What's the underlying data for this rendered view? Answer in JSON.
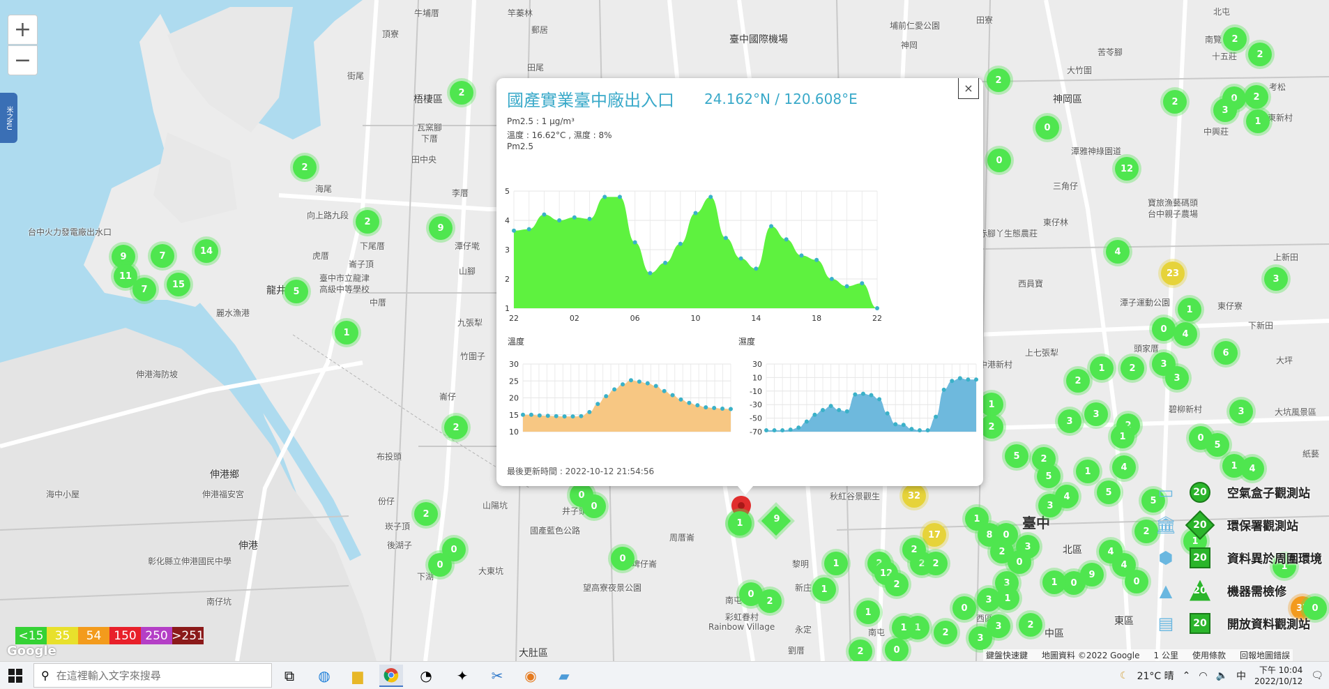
{
  "map": {
    "zoom_in": "+",
    "zoom_out": "−",
    "side_tab": "米之NU",
    "labels": [
      {
        "t": "牛埔厝",
        "x": 594,
        "y": 10
      },
      {
        "t": "竿蓁林",
        "x": 728,
        "y": 10
      },
      {
        "t": "郵居",
        "x": 762,
        "y": 34
      },
      {
        "t": "頂寮",
        "x": 548,
        "y": 40
      },
      {
        "t": "街尾",
        "x": 498,
        "y": 100
      },
      {
        "t": "田尾",
        "x": 756,
        "y": 88
      },
      {
        "t": "梧棲區",
        "x": 593,
        "y": 132,
        "c": "med"
      },
      {
        "t": "瓦窯腳",
        "x": 598,
        "y": 174
      },
      {
        "t": "下厝",
        "x": 604,
        "y": 190
      },
      {
        "t": "田中央",
        "x": 590,
        "y": 220
      },
      {
        "t": "海尾",
        "x": 452,
        "y": 262
      },
      {
        "t": "李厝",
        "x": 648,
        "y": 268
      },
      {
        "t": "台中火力發電廠出水口",
        "x": 40,
        "y": 324
      },
      {
        "t": "向上路九段",
        "x": 440,
        "y": 300
      },
      {
        "t": "下尾厝",
        "x": 516,
        "y": 344
      },
      {
        "t": "潭仔墘",
        "x": 652,
        "y": 344
      },
      {
        "t": "虎厝",
        "x": 448,
        "y": 358
      },
      {
        "t": "山腳",
        "x": 658,
        "y": 380
      },
      {
        "t": "崙子頂",
        "x": 500,
        "y": 370
      },
      {
        "t": "臺中市立龍津",
        "x": 458,
        "y": 390
      },
      {
        "t": "高級中等學校",
        "x": 458,
        "y": 406
      },
      {
        "t": "中厝",
        "x": 530,
        "y": 425
      },
      {
        "t": "龍井",
        "x": 382,
        "y": 406,
        "c": "med"
      },
      {
        "t": "麗水漁港",
        "x": 310,
        "y": 440
      },
      {
        "t": "九張犁",
        "x": 656,
        "y": 454
      },
      {
        "t": "竹圍子",
        "x": 660,
        "y": 502
      },
      {
        "t": "伸港海防坡",
        "x": 195,
        "y": 528
      },
      {
        "t": "崙仔",
        "x": 630,
        "y": 560
      },
      {
        "t": "伸港鄉",
        "x": 301,
        "y": 670,
        "c": "med"
      },
      {
        "t": "伸港福安宮",
        "x": 290,
        "y": 700
      },
      {
        "t": "布投頭",
        "x": 540,
        "y": 646
      },
      {
        "t": "份仔",
        "x": 542,
        "y": 710
      },
      {
        "t": "崁子頂",
        "x": 552,
        "y": 746
      },
      {
        "t": "後湖子",
        "x": 555,
        "y": 773
      },
      {
        "t": "海中小屋",
        "x": 66,
        "y": 700
      },
      {
        "t": "伸港",
        "x": 342,
        "y": 772,
        "c": "med"
      },
      {
        "t": "彰化縣立伸港國民中學",
        "x": 212,
        "y": 796
      },
      {
        "t": "南仔坑",
        "x": 296,
        "y": 854
      },
      {
        "t": "山陽坑",
        "x": 692,
        "y": 716
      },
      {
        "t": "井子頭",
        "x": 806,
        "y": 724
      },
      {
        "t": "國產藍色公路",
        "x": 760,
        "y": 752
      },
      {
        "t": "周厝崙",
        "x": 960,
        "y": 762
      },
      {
        "t": "大東坑",
        "x": 686,
        "y": 810
      },
      {
        "t": "埤仔崙",
        "x": 906,
        "y": 800
      },
      {
        "t": "望高寮夜景公園",
        "x": 836,
        "y": 834
      },
      {
        "t": "下湖",
        "x": 598,
        "y": 818
      },
      {
        "t": "大肚區",
        "x": 744,
        "y": 926,
        "c": "med"
      },
      {
        "t": "南屯",
        "x": 1040,
        "y": 852
      },
      {
        "t": "新庄",
        "x": 1140,
        "y": 834
      },
      {
        "t": "彩虹眷村",
        "x": 1040,
        "y": 876
      },
      {
        "t": "Rainbow Village",
        "x": 1016,
        "y": 892
      },
      {
        "t": "永定",
        "x": 1140,
        "y": 894
      },
      {
        "t": "劉厝",
        "x": 1130,
        "y": 924
      },
      {
        "t": "黎明",
        "x": 1136,
        "y": 800
      },
      {
        "t": "秋紅谷景觀生",
        "x": 1190,
        "y": 703
      },
      {
        "t": "臺中國際機場",
        "x": 1046,
        "y": 46,
        "c": "med"
      },
      {
        "t": "埔前仁愛公園",
        "x": 1276,
        "y": 28
      },
      {
        "t": "神岡",
        "x": 1292,
        "y": 56
      },
      {
        "t": "田寮",
        "x": 1400,
        "y": 20
      },
      {
        "t": "苦苓腳",
        "x": 1574,
        "y": 66
      },
      {
        "t": "大竹圍",
        "x": 1530,
        "y": 92
      },
      {
        "t": "神岡區",
        "x": 1510,
        "y": 132,
        "c": "med"
      },
      {
        "t": "北屯",
        "x": 1740,
        "y": 8
      },
      {
        "t": "南覽",
        "x": 1728,
        "y": 48
      },
      {
        "t": "十五莊",
        "x": 1738,
        "y": 72
      },
      {
        "t": "考松",
        "x": 1820,
        "y": 116
      },
      {
        "t": "東新村",
        "x": 1818,
        "y": 160
      },
      {
        "t": "中興莊",
        "x": 1726,
        "y": 180
      },
      {
        "t": "潭雅神綠園道",
        "x": 1536,
        "y": 208
      },
      {
        "t": "三角仔",
        "x": 1510,
        "y": 258
      },
      {
        "t": "寶旅漁藝碼頭",
        "x": 1646,
        "y": 282
      },
      {
        "t": "台中親子農場",
        "x": 1646,
        "y": 298
      },
      {
        "t": "赤腳丫生態農莊",
        "x": 1404,
        "y": 326
      },
      {
        "t": "東仔林",
        "x": 1496,
        "y": 310
      },
      {
        "t": "西員寶",
        "x": 1460,
        "y": 398
      },
      {
        "t": "上新田",
        "x": 1826,
        "y": 360
      },
      {
        "t": "東仔寮",
        "x": 1746,
        "y": 430
      },
      {
        "t": "潭子運動公園",
        "x": 1606,
        "y": 425
      },
      {
        "t": "下新田",
        "x": 1790,
        "y": 458
      },
      {
        "t": "上七張犁",
        "x": 1470,
        "y": 497
      },
      {
        "t": "中港新村",
        "x": 1404,
        "y": 514
      },
      {
        "t": "頭家厝",
        "x": 1626,
        "y": 491
      },
      {
        "t": "大坪",
        "x": 1830,
        "y": 508
      },
      {
        "t": "碧柳新村",
        "x": 1676,
        "y": 578
      },
      {
        "t": "大坑風景區",
        "x": 1828,
        "y": 582
      },
      {
        "t": "紙藝",
        "x": 1868,
        "y": 642
      },
      {
        "t": "臺中",
        "x": 1466,
        "y": 734,
        "c": "big"
      },
      {
        "t": "北區",
        "x": 1524,
        "y": 778,
        "c": "med"
      },
      {
        "t": "中區",
        "x": 1498,
        "y": 898,
        "c": "med"
      },
      {
        "t": "東區",
        "x": 1598,
        "y": 880,
        "c": "med"
      },
      {
        "t": "西區",
        "x": 1400,
        "y": 878
      },
      {
        "t": "南屯",
        "x": 1245,
        "y": 898
      }
    ],
    "markers": [
      {
        "v": "2",
        "x": 662,
        "y": 133
      },
      {
        "v": "2",
        "x": 437,
        "y": 240
      },
      {
        "v": "2",
        "x": 527,
        "y": 318
      },
      {
        "v": "9",
        "x": 632,
        "y": 327
      },
      {
        "v": "9",
        "x": 177,
        "y": 368
      },
      {
        "v": "7",
        "x": 233,
        "y": 367
      },
      {
        "v": "14",
        "x": 296,
        "y": 360
      },
      {
        "v": "11",
        "x": 180,
        "y": 396
      },
      {
        "v": "7",
        "x": 207,
        "y": 415
      },
      {
        "v": "15",
        "x": 256,
        "y": 408
      },
      {
        "v": "5",
        "x": 425,
        "y": 418
      },
      {
        "v": "1",
        "x": 497,
        "y": 477
      },
      {
        "v": "2",
        "x": 654,
        "y": 613
      },
      {
        "v": "0",
        "x": 834,
        "y": 710
      },
      {
        "v": "0",
        "x": 852,
        "y": 726
      },
      {
        "v": "2",
        "x": 611,
        "y": 737
      },
      {
        "v": "0",
        "x": 651,
        "y": 788
      },
      {
        "v": "0",
        "x": 631,
        "y": 810
      },
      {
        "v": "0",
        "x": 893,
        "y": 801
      },
      {
        "v": "1",
        "x": 1061,
        "y": 751
      },
      {
        "v": "0",
        "x": 1077,
        "y": 852
      },
      {
        "v": "2",
        "x": 1104,
        "y": 862
      },
      {
        "v": "1",
        "x": 1199,
        "y": 808
      },
      {
        "v": "1",
        "x": 1182,
        "y": 845
      },
      {
        "v": "32",
        "x": 1311,
        "y": 711,
        "c": "yellow"
      },
      {
        "v": "17",
        "x": 1340,
        "y": 767,
        "c": "yellow"
      },
      {
        "v": "2",
        "x": 1432,
        "y": 115
      },
      {
        "v": "0",
        "x": 1502,
        "y": 183
      },
      {
        "v": "0",
        "x": 1433,
        "y": 230
      },
      {
        "v": "12",
        "x": 1616,
        "y": 242
      },
      {
        "v": "4",
        "x": 1603,
        "y": 361
      },
      {
        "v": "2",
        "x": 1771,
        "y": 56
      },
      {
        "v": "2",
        "x": 1807,
        "y": 78
      },
      {
        "v": "2",
        "x": 1685,
        "y": 146
      },
      {
        "v": "0",
        "x": 1770,
        "y": 141
      },
      {
        "v": "2",
        "x": 1802,
        "y": 139
      },
      {
        "v": "3",
        "x": 1757,
        "y": 158
      },
      {
        "v": "1",
        "x": 1804,
        "y": 174
      },
      {
        "v": "23",
        "x": 1682,
        "y": 392,
        "c": "yellow"
      },
      {
        "v": "3",
        "x": 1830,
        "y": 400
      },
      {
        "v": "1",
        "x": 1706,
        "y": 444
      },
      {
        "v": "0",
        "x": 1669,
        "y": 472
      },
      {
        "v": "4",
        "x": 1700,
        "y": 479
      },
      {
        "v": "6",
        "x": 1758,
        "y": 506
      },
      {
        "v": "3",
        "x": 1669,
        "y": 522
      },
      {
        "v": "3",
        "x": 1688,
        "y": 542
      },
      {
        "v": "2",
        "x": 1624,
        "y": 528
      },
      {
        "v": "1",
        "x": 1580,
        "y": 528
      },
      {
        "v": "2",
        "x": 1546,
        "y": 546
      },
      {
        "v": "1",
        "x": 1422,
        "y": 580
      },
      {
        "v": "2",
        "x": 1422,
        "y": 612
      },
      {
        "v": "3",
        "x": 1534,
        "y": 604
      },
      {
        "v": "3",
        "x": 1572,
        "y": 594
      },
      {
        "v": "2",
        "x": 1618,
        "y": 610
      },
      {
        "v": "1",
        "x": 1610,
        "y": 626
      },
      {
        "v": "5",
        "x": 1458,
        "y": 654
      },
      {
        "v": "2",
        "x": 1497,
        "y": 658
      },
      {
        "v": "5",
        "x": 1504,
        "y": 683
      },
      {
        "v": "1",
        "x": 1560,
        "y": 676
      },
      {
        "v": "4",
        "x": 1612,
        "y": 670
      },
      {
        "v": "5",
        "x": 1590,
        "y": 706
      },
      {
        "v": "0",
        "x": 1722,
        "y": 628
      },
      {
        "v": "5",
        "x": 1746,
        "y": 638
      },
      {
        "v": "1",
        "x": 1770,
        "y": 668
      },
      {
        "v": "4",
        "x": 1796,
        "y": 672
      },
      {
        "v": "3",
        "x": 1780,
        "y": 590
      },
      {
        "v": "5",
        "x": 1654,
        "y": 718
      },
      {
        "v": "4",
        "x": 1530,
        "y": 712
      },
      {
        "v": "3",
        "x": 1506,
        "y": 725
      },
      {
        "v": "1",
        "x": 1401,
        "y": 744
      },
      {
        "v": "8",
        "x": 1419,
        "y": 767
      },
      {
        "v": "0",
        "x": 1443,
        "y": 767
      },
      {
        "v": "2",
        "x": 1437,
        "y": 791
      },
      {
        "v": "3",
        "x": 1474,
        "y": 784
      },
      {
        "v": "0",
        "x": 1462,
        "y": 806
      },
      {
        "v": "4",
        "x": 1593,
        "y": 791
      },
      {
        "v": "4",
        "x": 1612,
        "y": 810
      },
      {
        "v": "0",
        "x": 1630,
        "y": 834
      },
      {
        "v": "2",
        "x": 1644,
        "y": 762
      },
      {
        "v": "1",
        "x": 1714,
        "y": 776
      },
      {
        "v": "1",
        "x": 1842,
        "y": 812
      },
      {
        "v": "0",
        "x": 1540,
        "y": 836
      },
      {
        "v": "9",
        "x": 1566,
        "y": 824
      },
      {
        "v": "1",
        "x": 1512,
        "y": 835
      },
      {
        "v": "2",
        "x": 1261,
        "y": 808
      },
      {
        "v": "12",
        "x": 1271,
        "y": 822
      },
      {
        "v": "2",
        "x": 1286,
        "y": 838
      },
      {
        "v": "2",
        "x": 1322,
        "y": 808
      },
      {
        "v": "2",
        "x": 1342,
        "y": 808
      },
      {
        "v": "2",
        "x": 1311,
        "y": 788
      },
      {
        "v": "0",
        "x": 1383,
        "y": 872
      },
      {
        "v": "3",
        "x": 1418,
        "y": 860
      },
      {
        "v": "3",
        "x": 1444,
        "y": 836
      },
      {
        "v": "1",
        "x": 1445,
        "y": 858
      },
      {
        "v": "3",
        "x": 1432,
        "y": 898
      },
      {
        "v": "2",
        "x": 1356,
        "y": 907
      },
      {
        "v": "1",
        "x": 1316,
        "y": 900
      },
      {
        "v": "1",
        "x": 1245,
        "y": 878
      },
      {
        "v": "1",
        "x": 1296,
        "y": 900
      },
      {
        "v": "2",
        "x": 1478,
        "y": 896
      },
      {
        "v": "3",
        "x": 1406,
        "y": 915
      },
      {
        "v": "2",
        "x": 1234,
        "y": 934
      },
      {
        "v": "0",
        "x": 1286,
        "y": 932
      },
      {
        "v": "37",
        "x": 1868,
        "y": 872,
        "c": "orange"
      },
      {
        "v": "0",
        "x": 1886,
        "y": 872
      }
    ]
  },
  "legend_bar": [
    {
      "label": "<15",
      "color": "#35d235"
    },
    {
      "label": "35",
      "color": "#e8e02c"
    },
    {
      "label": "54",
      "color": "#f39b1c"
    },
    {
      "label": "150",
      "color": "#e8202a"
    },
    {
      "label": "250",
      "color": "#b43fc6"
    },
    {
      "label": ">251",
      "color": "#8b1a1a"
    }
  ],
  "google_logo": "Google",
  "attribution": [
    "鍵盤快速鍵",
    "地圖資料 ©2022 Google",
    "1 公里",
    "使用條款",
    "回報地圖錯誤"
  ],
  "right_legend": [
    {
      "icon": "box",
      "num": "20",
      "label": "空氣盒子觀測站"
    },
    {
      "icon": "bank",
      "num": "20",
      "label": "環保署觀測站"
    },
    {
      "icon": "pin",
      "num": "20",
      "label": "資料異於周圍環境"
    },
    {
      "icon": "cone",
      "num": "20",
      "label": "機器需檢修"
    },
    {
      "icon": "doc",
      "num": "20",
      "label": "開放資料觀測站"
    }
  ],
  "popup": {
    "title": "國產實業臺中廠出入口",
    "coords": "24.162°N / 120.608°E",
    "pm_line": "Pm2.5 : 1 μg/m³",
    "temp_line": "溫度 : 16.62°C , 濕度 : 8%",
    "chart_title": "Pm2.5",
    "temp_title": "溫度",
    "hum_title": "濕度",
    "updated": "最後更新時間 : 2022-10-12 21:54:56",
    "close": "×",
    "marker_value": "1",
    "diamond_value": "9"
  },
  "chart_data": [
    {
      "type": "area",
      "title": "Pm2.5",
      "color": "#5ef23f",
      "x_ticks": [
        "22",
        "02",
        "06",
        "10",
        "14",
        "18",
        "22"
      ],
      "ylim": [
        1,
        5
      ],
      "y_ticks": [
        1,
        2,
        3,
        4,
        5
      ],
      "values": [
        3.65,
        3.7,
        4.2,
        4.0,
        4.1,
        4.05,
        4.8,
        4.8,
        3.25,
        2.2,
        2.55,
        3.2,
        4.25,
        4.8,
        3.4,
        2.7,
        2.35,
        3.8,
        3.35,
        2.8,
        2.65,
        2.0,
        1.75,
        1.85,
        1.0
      ]
    },
    {
      "type": "area",
      "title": "溫度",
      "color": "#f7c783",
      "ylim": [
        10,
        30
      ],
      "y_ticks": [
        10,
        15,
        20,
        25,
        30
      ],
      "values": [
        15,
        15,
        14.8,
        14.7,
        14.6,
        14.5,
        14.5,
        14.6,
        15.8,
        18.2,
        20.5,
        22.5,
        24,
        25.2,
        24.8,
        24.3,
        23.5,
        22,
        20.8,
        19.5,
        18.5,
        17.8,
        17.2,
        17,
        16.8,
        16.7
      ]
    },
    {
      "type": "area",
      "title": "濕度",
      "color": "#6eb9dd",
      "ylim": [
        -70,
        30
      ],
      "y_ticks": [
        -70,
        -50,
        -30,
        -10,
        10,
        30
      ],
      "values": [
        -68,
        -68,
        -68,
        -67,
        -64,
        -55,
        -45,
        -38,
        -32,
        -38,
        -40,
        -15,
        -14,
        -16,
        -22,
        -43,
        -59,
        -60,
        -66,
        -68,
        -68,
        -48,
        -8,
        5,
        9,
        7,
        7
      ]
    }
  ],
  "taskbar": {
    "search_placeholder": "在這裡輸入文字來搜尋",
    "weather": "21°C 晴",
    "ime": "中",
    "time": "下午 10:04",
    "date": "2022/10/12"
  }
}
